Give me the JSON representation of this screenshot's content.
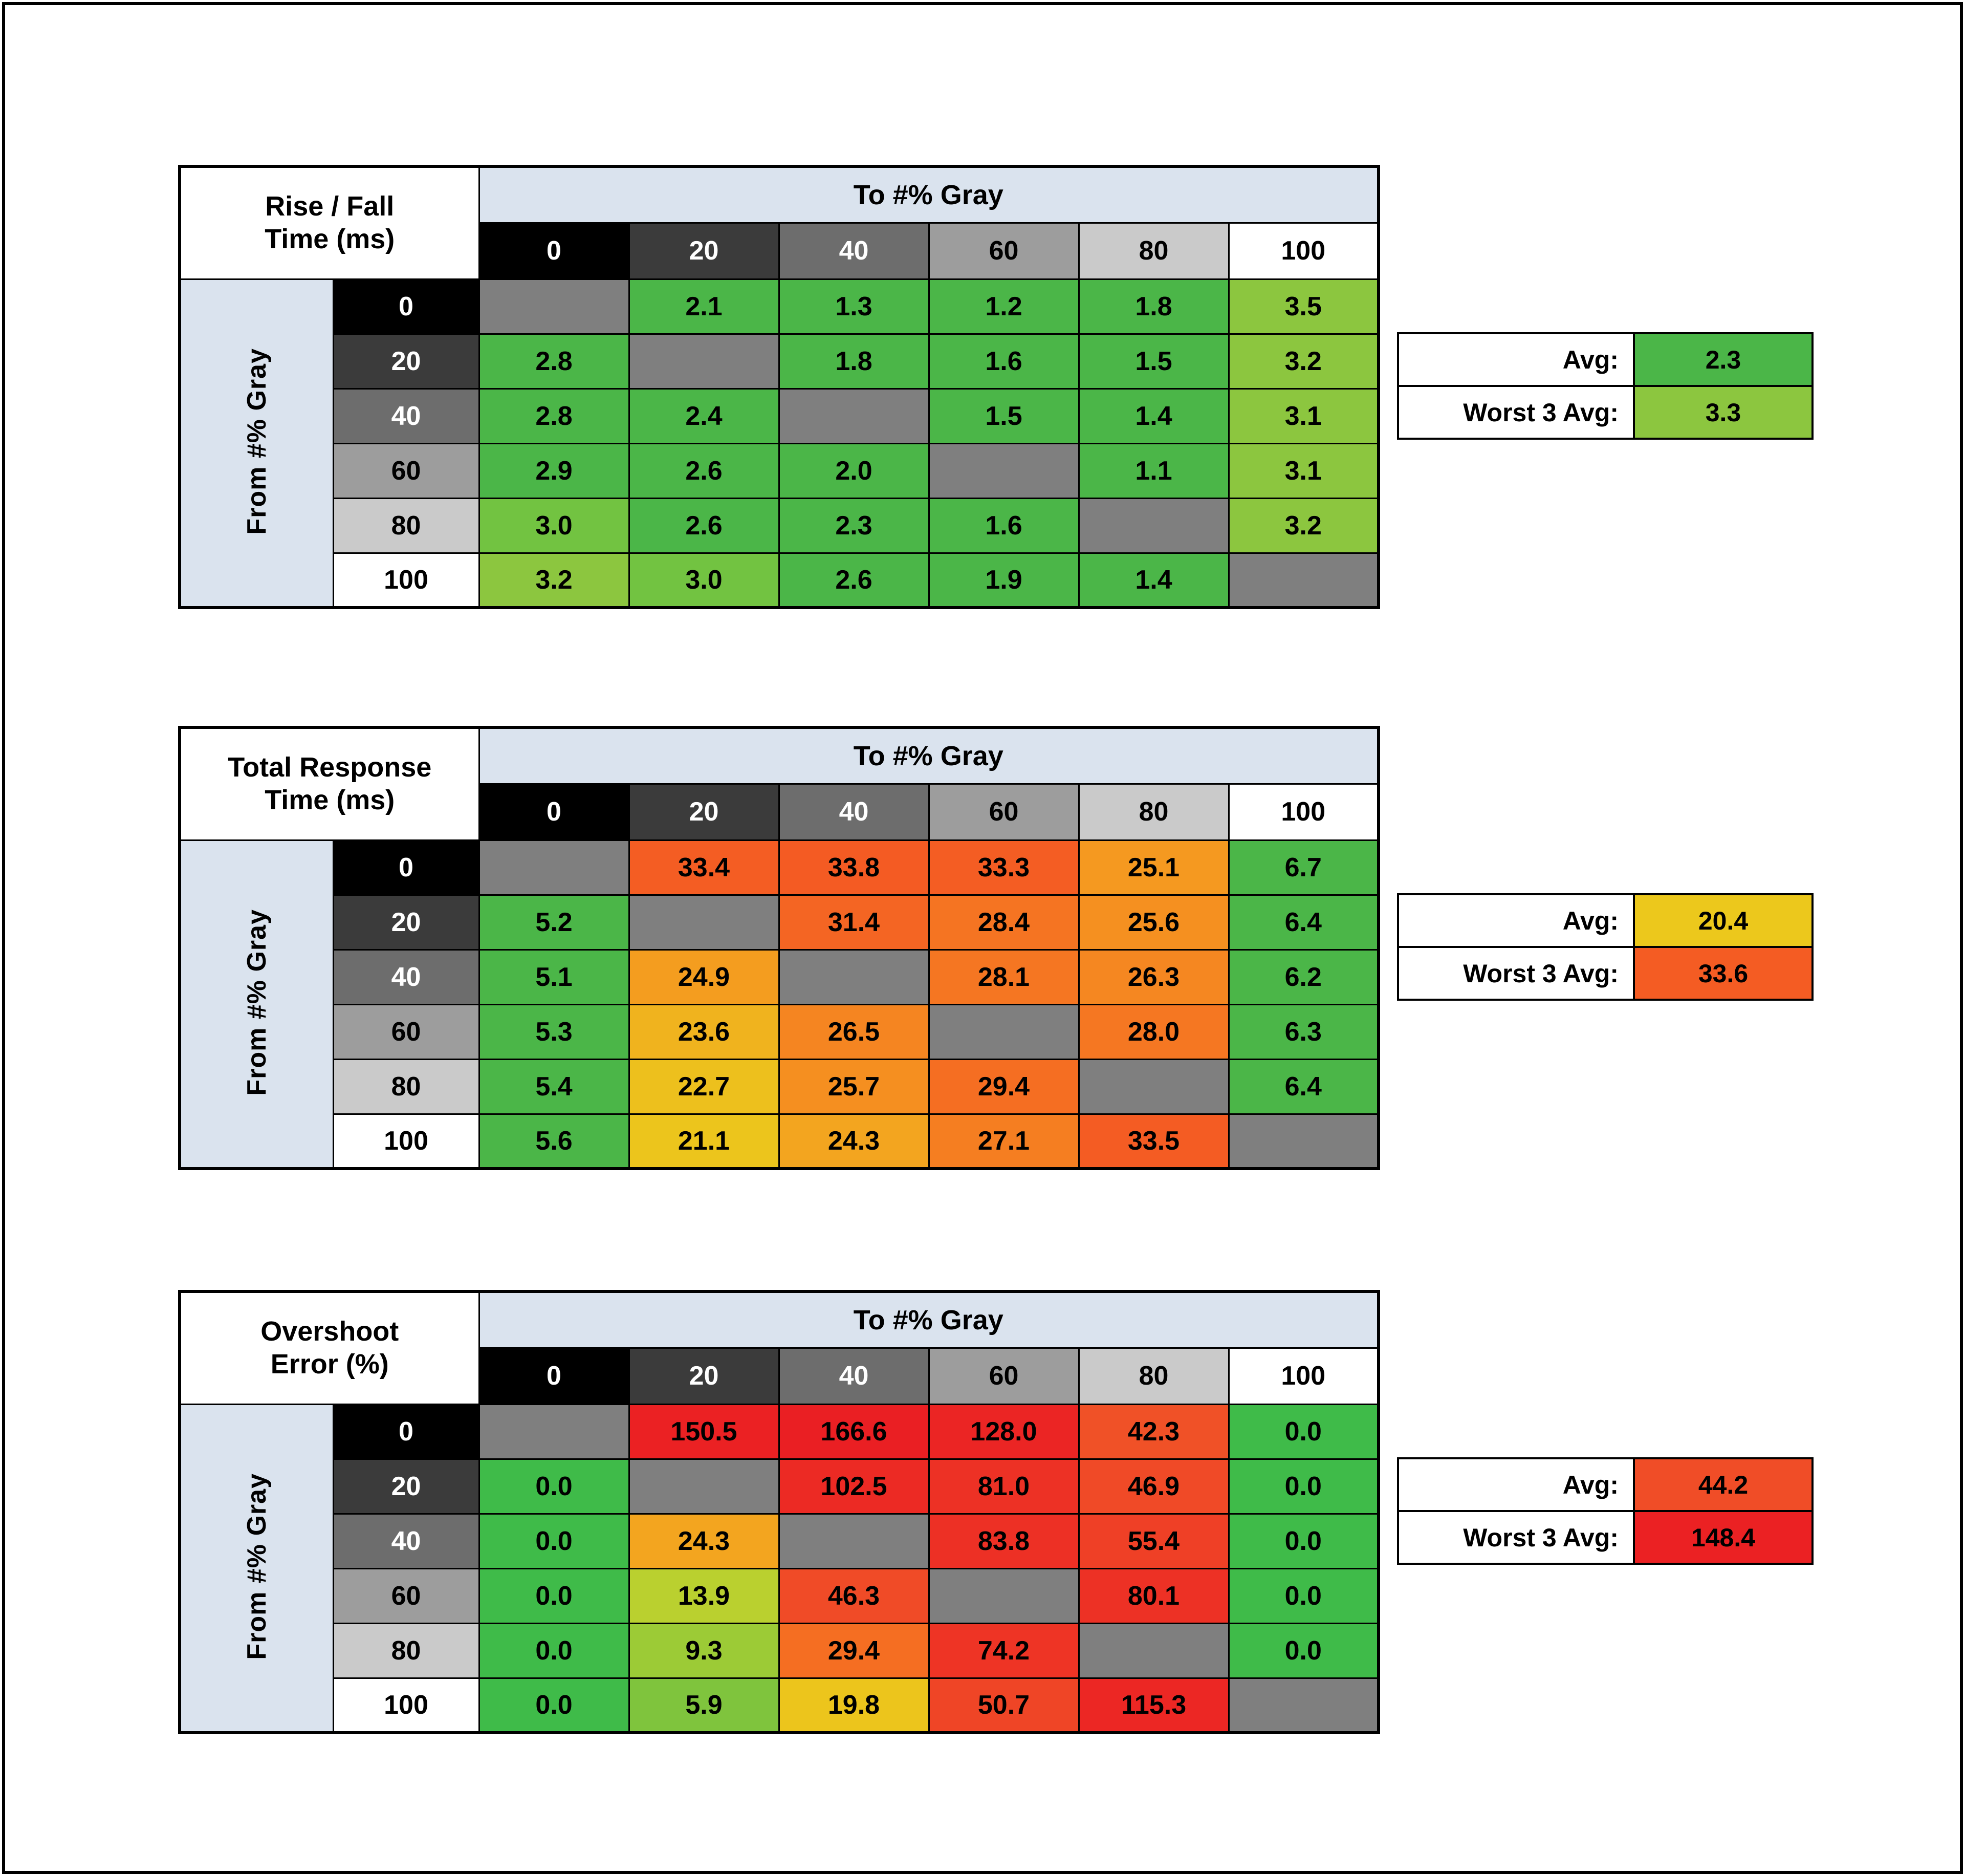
{
  "frame": {
    "border_color": "#000000",
    "background": "#ffffff"
  },
  "shared": {
    "band_bg": "#dae3ee",
    "diag_bg": "#7f7f7f",
    "gray_steps_bg": [
      "#000000",
      "#3b3b3b",
      "#6d6d6d",
      "#9d9d9d",
      "#cacaca",
      "#ffffff"
    ],
    "gray_steps_fg": [
      "#ffffff",
      "#ffffff",
      "#ffffff",
      "#000000",
      "#000000",
      "#000000"
    ]
  },
  "chart_data": [
    {
      "type": "heatmap",
      "id": "rise-fall-time",
      "title": "Rise / Fall Time (ms)",
      "title_lines": [
        "Rise / Fall",
        "Time (ms)"
      ],
      "x_label": "To #% Gray",
      "y_label": "From #% Gray",
      "x_ticks": [
        "0",
        "20",
        "40",
        "60",
        "80",
        "100"
      ],
      "y_ticks": [
        "0",
        "20",
        "40",
        "60",
        "80",
        "100"
      ],
      "rows": [
        [
          null,
          {
            "v": "2.1",
            "c": "#4bb648"
          },
          {
            "v": "1.3",
            "c": "#4bb648"
          },
          {
            "v": "1.2",
            "c": "#4bb648"
          },
          {
            "v": "1.8",
            "c": "#4bb648"
          },
          {
            "v": "3.5",
            "c": "#8cc63f"
          }
        ],
        [
          {
            "v": "2.8",
            "c": "#4bb648"
          },
          null,
          {
            "v": "1.8",
            "c": "#4bb648"
          },
          {
            "v": "1.6",
            "c": "#4bb648"
          },
          {
            "v": "1.5",
            "c": "#4bb648"
          },
          {
            "v": "3.2",
            "c": "#8cc63f"
          }
        ],
        [
          {
            "v": "2.8",
            "c": "#4bb648"
          },
          {
            "v": "2.4",
            "c": "#4bb648"
          },
          null,
          {
            "v": "1.5",
            "c": "#4bb648"
          },
          {
            "v": "1.4",
            "c": "#4bb648"
          },
          {
            "v": "3.1",
            "c": "#8cc63f"
          }
        ],
        [
          {
            "v": "2.9",
            "c": "#4bb648"
          },
          {
            "v": "2.6",
            "c": "#4bb648"
          },
          {
            "v": "2.0",
            "c": "#4bb648"
          },
          null,
          {
            "v": "1.1",
            "c": "#4bb648"
          },
          {
            "v": "3.1",
            "c": "#8cc63f"
          }
        ],
        [
          {
            "v": "3.0",
            "c": "#72c341"
          },
          {
            "v": "2.6",
            "c": "#4bb648"
          },
          {
            "v": "2.3",
            "c": "#4bb648"
          },
          {
            "v": "1.6",
            "c": "#4bb648"
          },
          null,
          {
            "v": "3.2",
            "c": "#8cc63f"
          }
        ],
        [
          {
            "v": "3.2",
            "c": "#8cc63f"
          },
          {
            "v": "3.0",
            "c": "#72c341"
          },
          {
            "v": "2.6",
            "c": "#4bb648"
          },
          {
            "v": "1.9",
            "c": "#4bb648"
          },
          {
            "v": "1.4",
            "c": "#4bb648"
          },
          null
        ]
      ],
      "avg": {
        "label": "Avg:",
        "value": "2.3",
        "color": "#4bb648"
      },
      "worst3": {
        "label": "Worst 3 Avg:",
        "value": "3.3",
        "color": "#8cc63f"
      }
    },
    {
      "type": "heatmap",
      "id": "total-response-time",
      "title": "Total Response Time (ms)",
      "title_lines": [
        "Total Response",
        "Time (ms)"
      ],
      "x_label": "To #% Gray",
      "y_label": "From #% Gray",
      "x_ticks": [
        "0",
        "20",
        "40",
        "60",
        "80",
        "100"
      ],
      "y_ticks": [
        "0",
        "20",
        "40",
        "60",
        "80",
        "100"
      ],
      "rows": [
        [
          null,
          {
            "v": "33.4",
            "c": "#f45d23"
          },
          {
            "v": "33.8",
            "c": "#f45b23"
          },
          {
            "v": "33.3",
            "c": "#f45d23"
          },
          {
            "v": "25.1",
            "c": "#f59920"
          },
          {
            "v": "6.7",
            "c": "#4bb648"
          }
        ],
        [
          {
            "v": "5.2",
            "c": "#4bb648"
          },
          null,
          {
            "v": "31.4",
            "c": "#f46523"
          },
          {
            "v": "28.4",
            "c": "#f57422"
          },
          {
            "v": "25.6",
            "c": "#f59020"
          },
          {
            "v": "6.4",
            "c": "#4bb648"
          }
        ],
        [
          {
            "v": "5.1",
            "c": "#4bb648"
          },
          {
            "v": "24.9",
            "c": "#f49d1f"
          },
          null,
          {
            "v": "28.1",
            "c": "#f57622"
          },
          {
            "v": "26.3",
            "c": "#f58721"
          },
          {
            "v": "6.2",
            "c": "#4bb648"
          }
        ],
        [
          {
            "v": "5.3",
            "c": "#4bb648"
          },
          {
            "v": "23.6",
            "c": "#f0b31e"
          },
          {
            "v": "26.5",
            "c": "#f58521"
          },
          null,
          {
            "v": "28.0",
            "c": "#f57722"
          },
          {
            "v": "6.3",
            "c": "#4bb648"
          }
        ],
        [
          {
            "v": "5.4",
            "c": "#4bb648"
          },
          {
            "v": "22.7",
            "c": "#edc01d"
          },
          {
            "v": "25.7",
            "c": "#f58f20"
          },
          {
            "v": "29.4",
            "c": "#f56e22"
          },
          null,
          {
            "v": "6.4",
            "c": "#4bb648"
          }
        ],
        [
          {
            "v": "5.6",
            "c": "#4bb648"
          },
          {
            "v": "21.1",
            "c": "#ecc51c"
          },
          {
            "v": "24.3",
            "c": "#f3a51f"
          },
          {
            "v": "27.1",
            "c": "#f57e21"
          },
          {
            "v": "33.5",
            "c": "#f45c23"
          },
          null
        ]
      ],
      "avg": {
        "label": "Avg:",
        "value": "20.4",
        "color": "#ecc81c"
      },
      "worst3": {
        "label": "Worst 3 Avg:",
        "value": "33.6",
        "color": "#f45c23"
      }
    },
    {
      "type": "heatmap",
      "id": "overshoot-error",
      "title": "Overshoot Error (%)",
      "title_lines": [
        "Overshoot",
        "Error (%)"
      ],
      "x_label": "To #% Gray",
      "y_label": "From #% Gray",
      "x_ticks": [
        "0",
        "20",
        "40",
        "60",
        "80",
        "100"
      ],
      "y_ticks": [
        "0",
        "20",
        "40",
        "60",
        "80",
        "100"
      ],
      "rows": [
        [
          null,
          {
            "v": "150.5",
            "c": "#eb2123"
          },
          {
            "v": "166.6",
            "c": "#ea1f23"
          },
          {
            "v": "128.0",
            "c": "#eb2524"
          },
          {
            "v": "42.3",
            "c": "#f05127"
          },
          {
            "v": "0.0",
            "c": "#3fbb49"
          }
        ],
        [
          {
            "v": "0.0",
            "c": "#3fbb49"
          },
          null,
          {
            "v": "102.5",
            "c": "#ec2a24"
          },
          {
            "v": "81.0",
            "c": "#ed3125"
          },
          {
            "v": "46.9",
            "c": "#f04a27"
          },
          {
            "v": "0.0",
            "c": "#3fbb49"
          }
        ],
        [
          {
            "v": "0.0",
            "c": "#3fbb49"
          },
          {
            "v": "24.3",
            "c": "#f3a51f"
          },
          null,
          {
            "v": "83.8",
            "c": "#ed3025"
          },
          {
            "v": "55.4",
            "c": "#ef4026"
          },
          {
            "v": "0.0",
            "c": "#3fbb49"
          }
        ],
        [
          {
            "v": "0.0",
            "c": "#3fbb49"
          },
          {
            "v": "13.9",
            "c": "#bad02f"
          },
          {
            "v": "46.3",
            "c": "#f04b27"
          },
          null,
          {
            "v": "80.1",
            "c": "#ed3125"
          },
          {
            "v": "0.0",
            "c": "#3fbb49"
          }
        ],
        [
          {
            "v": "0.0",
            "c": "#3fbb49"
          },
          {
            "v": "9.3",
            "c": "#9ccb36"
          },
          {
            "v": "29.4",
            "c": "#f56e22"
          },
          {
            "v": "74.2",
            "c": "#ee3425"
          },
          null,
          {
            "v": "0.0",
            "c": "#3fbb49"
          }
        ],
        [
          {
            "v": "0.0",
            "c": "#3fbb49"
          },
          {
            "v": "5.9",
            "c": "#7fc43d"
          },
          {
            "v": "19.8",
            "c": "#ecc51c"
          },
          {
            "v": "50.7",
            "c": "#ef4526"
          },
          {
            "v": "115.3",
            "c": "#ec2724"
          },
          null
        ]
      ],
      "avg": {
        "label": "Avg:",
        "value": "44.2",
        "color": "#f04d27"
      },
      "worst3": {
        "label": "Worst 3 Avg:",
        "value": "148.4",
        "color": "#eb2123"
      }
    }
  ]
}
